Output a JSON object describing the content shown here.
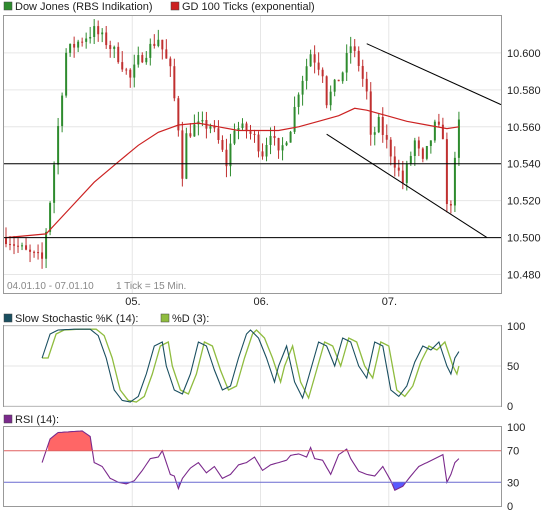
{
  "colors": {
    "frame": "#999999",
    "grid": "#e6e6e6",
    "bull": "#2e8b2e",
    "bear": "#c03030",
    "ma": "#cc2222",
    "trend": "#000000",
    "k": "#1a4f60",
    "d": "#8fbc3f",
    "rsi": "#7b2a8c",
    "rsi_over": "#ff6666",
    "rsi_under": "#5a5aff",
    "ref70": "#e06060",
    "ref30": "#6a6ad0"
  },
  "chart_data": [
    {
      "type": "candlestick",
      "legend": [
        {
          "name": "Dow Jones (RBS Indikation)",
          "swatch": "#2e8b2e",
          "icon": "price-swatch"
        },
        {
          "name": "GD 100 Ticks (exponential)",
          "swatch": "#cc2222",
          "icon": "ma-swatch"
        }
      ],
      "ylim": [
        10470,
        10620
      ],
      "y_ticks": [
        "10.480",
        "10.500",
        "10.520",
        "10.540",
        "10.560",
        "10.580",
        "10.600"
      ],
      "y_tick_values": [
        10480,
        10500,
        10520,
        10540,
        10560,
        10580,
        10600
      ],
      "x_ticks": [
        "05.",
        "06.",
        "07."
      ],
      "x_tick_positions": [
        31.5,
        63.5,
        95.5
      ],
      "date_range": "04.01.10 - 07.01.10",
      "resolution": "1 Tick = 15 Min.",
      "n_bars": 124,
      "close_keyframes": [
        [
          0,
          10500
        ],
        [
          5,
          10492
        ],
        [
          9,
          10488
        ],
        [
          11,
          10520
        ],
        [
          13,
          10560
        ],
        [
          15,
          10600
        ],
        [
          18,
          10606
        ],
        [
          22,
          10612
        ],
        [
          25,
          10606
        ],
        [
          28,
          10598
        ],
        [
          31,
          10586
        ],
        [
          33,
          10596
        ],
        [
          38,
          10608
        ],
        [
          41,
          10590
        ],
        [
          43,
          10560
        ],
        [
          44,
          10535
        ],
        [
          45,
          10555
        ],
        [
          47,
          10560
        ],
        [
          51,
          10561
        ],
        [
          53,
          10552
        ],
        [
          55,
          10540
        ],
        [
          57,
          10560
        ],
        [
          60,
          10558
        ],
        [
          62,
          10554
        ],
        [
          64,
          10546
        ],
        [
          66,
          10558
        ],
        [
          68,
          10544
        ],
        [
          71,
          10560
        ],
        [
          73,
          10580
        ],
        [
          76,
          10600
        ],
        [
          79,
          10590
        ],
        [
          80,
          10574
        ],
        [
          84,
          10590
        ],
        [
          86,
          10604
        ],
        [
          88,
          10594
        ],
        [
          90,
          10578
        ],
        [
          91,
          10553
        ],
        [
          93,
          10562
        ],
        [
          96,
          10546
        ],
        [
          99,
          10530
        ],
        [
          102,
          10552
        ],
        [
          104,
          10540
        ],
        [
          107,
          10560
        ],
        [
          109,
          10556
        ],
        [
          110,
          10516
        ],
        [
          111,
          10520
        ],
        [
          112,
          10540
        ],
        [
          113,
          10562
        ]
      ],
      "ma_points": [
        [
          0,
          10500
        ],
        [
          10,
          10502
        ],
        [
          16,
          10516
        ],
        [
          22,
          10530
        ],
        [
          28,
          10541
        ],
        [
          33,
          10550
        ],
        [
          38,
          10557
        ],
        [
          43,
          10561
        ],
        [
          48,
          10562
        ],
        [
          53,
          10560
        ],
        [
          58,
          10558
        ],
        [
          63,
          10558
        ],
        [
          68,
          10558
        ],
        [
          73,
          10560
        ],
        [
          78,
          10563
        ],
        [
          83,
          10566
        ],
        [
          87,
          10570
        ],
        [
          90,
          10569
        ],
        [
          95,
          10566
        ],
        [
          100,
          10563
        ],
        [
          105,
          10561
        ],
        [
          110,
          10559
        ],
        [
          113,
          10560
        ]
      ],
      "horizontal_lines": [
        10500,
        10540
      ],
      "channel": {
        "upper": [
          [
            90,
            10605
          ],
          [
            124,
            10572
          ]
        ],
        "lower": [
          [
            80,
            10556
          ],
          [
            120,
            10500
          ]
        ]
      }
    },
    {
      "type": "line",
      "series": [
        {
          "name": "Slow Stochastic %K (14):",
          "swatch": "#1a4f60",
          "icon": "k-swatch"
        },
        {
          "name": "%D (3):",
          "swatch": "#8fbc3f",
          "icon": "d-swatch"
        }
      ],
      "ylim": [
        0,
        100
      ],
      "y_ticks": [
        "0",
        "50",
        "100"
      ],
      "y_tick_values": [
        0,
        50,
        100
      ],
      "k_keyframes": [
        [
          9,
          60
        ],
        [
          11,
          90
        ],
        [
          13,
          95
        ],
        [
          17,
          96
        ],
        [
          21,
          96
        ],
        [
          23,
          88
        ],
        [
          25,
          60
        ],
        [
          27,
          20
        ],
        [
          29,
          7
        ],
        [
          31,
          5
        ],
        [
          33,
          12
        ],
        [
          35,
          40
        ],
        [
          37,
          75
        ],
        [
          39,
          80
        ],
        [
          40,
          50
        ],
        [
          42,
          20
        ],
        [
          44,
          15
        ],
        [
          46,
          40
        ],
        [
          48,
          80
        ],
        [
          50,
          75
        ],
        [
          52,
          45
        ],
        [
          54,
          20
        ],
        [
          56,
          25
        ],
        [
          58,
          60
        ],
        [
          60,
          90
        ],
        [
          61,
          95
        ],
        [
          63,
          85
        ],
        [
          65,
          60
        ],
        [
          67,
          30
        ],
        [
          68,
          50
        ],
        [
          70,
          75
        ],
        [
          72,
          30
        ],
        [
          74,
          10
        ],
        [
          76,
          45
        ],
        [
          78,
          80
        ],
        [
          80,
          75
        ],
        [
          82,
          50
        ],
        [
          84,
          85
        ],
        [
          86,
          80
        ],
        [
          88,
          50
        ],
        [
          90,
          35
        ],
        [
          92,
          80
        ],
        [
          94,
          75
        ],
        [
          96,
          20
        ],
        [
          98,
          12
        ],
        [
          100,
          25
        ],
        [
          102,
          55
        ],
        [
          104,
          75
        ],
        [
          106,
          70
        ],
        [
          108,
          80
        ],
        [
          110,
          50
        ],
        [
          111,
          40
        ],
        [
          112,
          60
        ],
        [
          113,
          68
        ]
      ],
      "d_offset_bars": 1.5
    },
    {
      "type": "line",
      "series": [
        {
          "name": "RSI (14):",
          "swatch": "#7b2a8c",
          "icon": "rsi-swatch"
        }
      ],
      "ylim": [
        0,
        100
      ],
      "y_ticks": [
        "0",
        "30",
        "70",
        "100"
      ],
      "y_tick_values": [
        0,
        30,
        70,
        100
      ],
      "reference_lines": [
        30,
        70
      ],
      "rsi_keyframes": [
        [
          9,
          55
        ],
        [
          11,
          85
        ],
        [
          13,
          93
        ],
        [
          16,
          94
        ],
        [
          19,
          95
        ],
        [
          21,
          88
        ],
        [
          22,
          55
        ],
        [
          24,
          50
        ],
        [
          26,
          35
        ],
        [
          28,
          30
        ],
        [
          30,
          28
        ],
        [
          32,
          32
        ],
        [
          34,
          45
        ],
        [
          36,
          60
        ],
        [
          38,
          62
        ],
        [
          39,
          70
        ],
        [
          40,
          55
        ],
        [
          41,
          40
        ],
        [
          42,
          38
        ],
        [
          43,
          22
        ],
        [
          44,
          35
        ],
        [
          46,
          48
        ],
        [
          48,
          55
        ],
        [
          50,
          42
        ],
        [
          52,
          50
        ],
        [
          54,
          35
        ],
        [
          56,
          40
        ],
        [
          58,
          52
        ],
        [
          60,
          55
        ],
        [
          62,
          62
        ],
        [
          64,
          45
        ],
        [
          66,
          52
        ],
        [
          68,
          55
        ],
        [
          70,
          58
        ],
        [
          71,
          64
        ],
        [
          73,
          66
        ],
        [
          75,
          62
        ],
        [
          76,
          74
        ],
        [
          77,
          60
        ],
        [
          79,
          58
        ],
        [
          81,
          40
        ],
        [
          83,
          65
        ],
        [
          85,
          72
        ],
        [
          86,
          60
        ],
        [
          88,
          44
        ],
        [
          90,
          40
        ],
        [
          92,
          38
        ],
        [
          94,
          50
        ],
        [
          96,
          32
        ],
        [
          97,
          20
        ],
        [
          99,
          25
        ],
        [
          101,
          38
        ],
        [
          103,
          50
        ],
        [
          105,
          55
        ],
        [
          107,
          60
        ],
        [
          109,
          65
        ],
        [
          110,
          30
        ],
        [
          111,
          40
        ],
        [
          112,
          55
        ],
        [
          113,
          60
        ]
      ]
    }
  ]
}
